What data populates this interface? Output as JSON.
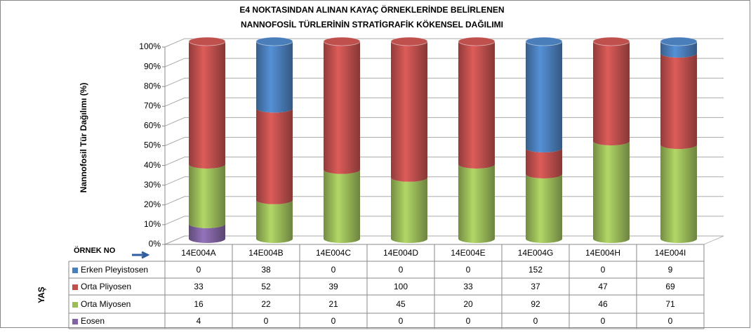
{
  "chart_data": {
    "type": "stacked_percent_cylinder",
    "title": [
      "E4 NOKTASINDAN ALINAN KAYAÇ ÖRNEKLERİNDE BELİRLENEN",
      "NANNOFOSİL TÜRLERİNİN STRATİGRAFİK KÖKENSEL DAĞILIMI"
    ],
    "y_label": "Nannofosil Tür Dağılımı (%)",
    "table_header": "ÖRNEK NO",
    "row_group_label": "YAŞ",
    "categories": [
      "14E004A",
      "14E004B",
      "14E004C",
      "14E004D",
      "14E004E",
      "14E004G",
      "14E004H",
      "14E004I"
    ],
    "series": [
      {
        "name": "Erken Pleyistosen",
        "color": "#4a7ebb",
        "values": [
          0,
          38,
          0,
          0,
          0,
          152,
          0,
          9
        ]
      },
      {
        "name": "Orta Pliyosen",
        "color": "#c0504d",
        "values": [
          33,
          52,
          39,
          100,
          33,
          37,
          47,
          69
        ]
      },
      {
        "name": "Orta Miyosen",
        "color": "#9bbb59",
        "values": [
          16,
          22,
          21,
          45,
          20,
          92,
          46,
          71
        ]
      },
      {
        "name": "Eosen",
        "color": "#8064a2",
        "values": [
          4,
          0,
          0,
          0,
          0,
          0,
          0,
          0
        ]
      }
    ],
    "ylim": [
      0,
      100
    ],
    "yticks": [
      {
        "value": 0,
        "label": "0%"
      },
      {
        "value": 10,
        "label": "10%"
      },
      {
        "value": 20,
        "label": "20%"
      },
      {
        "value": 30,
        "label": "30%"
      },
      {
        "value": 40,
        "label": "40%"
      },
      {
        "value": 50,
        "label": "50%"
      },
      {
        "value": 60,
        "label": "60%"
      },
      {
        "value": 70,
        "label": "70%"
      },
      {
        "value": 80,
        "label": "80%"
      },
      {
        "value": 90,
        "label": "90%"
      },
      {
        "value": 100,
        "label": "100%"
      }
    ],
    "grid": true
  }
}
